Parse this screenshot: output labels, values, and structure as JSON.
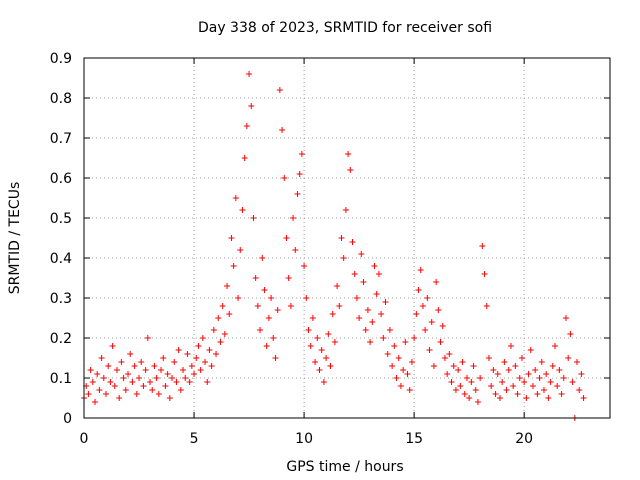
{
  "chart_data": {
    "type": "scatter",
    "title": "Day 338 of 2023, SRMTID for receiver sofi",
    "xlabel": "GPS time / hours",
    "ylabel": "SRMTID / TECUs",
    "xlim": [
      0,
      23.9
    ],
    "ylim": [
      0,
      0.9
    ],
    "xticks": [
      0,
      5,
      10,
      15,
      20
    ],
    "yticks": [
      0,
      0.1,
      0.2,
      0.3,
      0.4,
      0.5,
      0.6,
      0.7,
      0.8,
      0.9
    ],
    "xtick_labels": [
      "0",
      "5",
      "10",
      "15",
      "20"
    ],
    "ytick_labels": [
      "0",
      "0.1",
      "0.2",
      "0.3",
      "0.4",
      "0.5",
      "0.6",
      "0.7",
      "0.8",
      "0.9"
    ],
    "grid": true,
    "marker": "+",
    "color": "#ff0000",
    "series": [
      {
        "name": "SRMTID",
        "points": [
          [
            0.0,
            0.05
          ],
          [
            0.1,
            0.08
          ],
          [
            0.2,
            0.06
          ],
          [
            0.3,
            0.12
          ],
          [
            0.4,
            0.09
          ],
          [
            0.5,
            0.04
          ],
          [
            0.6,
            0.11
          ],
          [
            0.7,
            0.07
          ],
          [
            0.8,
            0.15
          ],
          [
            0.9,
            0.1
          ],
          [
            1.0,
            0.06
          ],
          [
            1.1,
            0.13
          ],
          [
            1.2,
            0.09
          ],
          [
            1.3,
            0.18
          ],
          [
            1.4,
            0.08
          ],
          [
            1.5,
            0.12
          ],
          [
            1.6,
            0.05
          ],
          [
            1.7,
            0.14
          ],
          [
            1.8,
            0.1
          ],
          [
            1.9,
            0.07
          ],
          [
            2.0,
            0.11
          ],
          [
            2.1,
            0.16
          ],
          [
            2.2,
            0.09
          ],
          [
            2.3,
            0.13
          ],
          [
            2.4,
            0.06
          ],
          [
            2.5,
            0.1
          ],
          [
            2.6,
            0.14
          ],
          [
            2.7,
            0.08
          ],
          [
            2.8,
            0.12
          ],
          [
            2.9,
            0.2
          ],
          [
            3.0,
            0.09
          ],
          [
            3.1,
            0.07
          ],
          [
            3.2,
            0.13
          ],
          [
            3.3,
            0.1
          ],
          [
            3.4,
            0.06
          ],
          [
            3.5,
            0.12
          ],
          [
            3.6,
            0.15
          ],
          [
            3.7,
            0.08
          ],
          [
            3.8,
            0.11
          ],
          [
            3.9,
            0.05
          ],
          [
            4.0,
            0.1
          ],
          [
            4.1,
            0.14
          ],
          [
            4.2,
            0.09
          ],
          [
            4.3,
            0.17
          ],
          [
            4.4,
            0.07
          ],
          [
            4.5,
            0.12
          ],
          [
            4.6,
            0.1
          ],
          [
            4.7,
            0.16
          ],
          [
            4.8,
            0.09
          ],
          [
            4.9,
            0.13
          ],
          [
            5.0,
            0.11
          ],
          [
            5.1,
            0.15
          ],
          [
            5.2,
            0.18
          ],
          [
            5.3,
            0.12
          ],
          [
            5.4,
            0.2
          ],
          [
            5.5,
            0.14
          ],
          [
            5.6,
            0.09
          ],
          [
            5.7,
            0.17
          ],
          [
            5.8,
            0.13
          ],
          [
            5.9,
            0.22
          ],
          [
            6.0,
            0.16
          ],
          [
            6.1,
            0.25
          ],
          [
            6.2,
            0.19
          ],
          [
            6.3,
            0.28
          ],
          [
            6.4,
            0.21
          ],
          [
            6.5,
            0.33
          ],
          [
            6.6,
            0.26
          ],
          [
            6.7,
            0.45
          ],
          [
            6.8,
            0.38
          ],
          [
            6.9,
            0.55
          ],
          [
            7.0,
            0.3
          ],
          [
            7.1,
            0.42
          ],
          [
            7.2,
            0.52
          ],
          [
            7.3,
            0.65
          ],
          [
            7.4,
            0.73
          ],
          [
            7.5,
            0.86
          ],
          [
            7.6,
            0.78
          ],
          [
            7.7,
            0.5
          ],
          [
            7.8,
            0.35
          ],
          [
            7.9,
            0.28
          ],
          [
            8.0,
            0.22
          ],
          [
            8.1,
            0.4
          ],
          [
            8.2,
            0.32
          ],
          [
            8.3,
            0.18
          ],
          [
            8.4,
            0.25
          ],
          [
            8.5,
            0.3
          ],
          [
            8.6,
            0.2
          ],
          [
            8.7,
            0.15
          ],
          [
            8.8,
            0.27
          ],
          [
            8.9,
            0.82
          ],
          [
            9.0,
            0.72
          ],
          [
            9.1,
            0.6
          ],
          [
            9.2,
            0.45
          ],
          [
            9.3,
            0.35
          ],
          [
            9.4,
            0.28
          ],
          [
            9.5,
            0.5
          ],
          [
            9.6,
            0.42
          ],
          [
            9.7,
            0.56
          ],
          [
            9.8,
            0.61
          ],
          [
            9.9,
            0.66
          ],
          [
            10.0,
            0.38
          ],
          [
            10.1,
            0.3
          ],
          [
            10.2,
            0.22
          ],
          [
            10.3,
            0.18
          ],
          [
            10.4,
            0.25
          ],
          [
            10.5,
            0.14
          ],
          [
            10.6,
            0.2
          ],
          [
            10.7,
            0.12
          ],
          [
            10.8,
            0.17
          ],
          [
            10.9,
            0.09
          ],
          [
            11.0,
            0.15
          ],
          [
            11.1,
            0.21
          ],
          [
            11.2,
            0.13
          ],
          [
            11.3,
            0.26
          ],
          [
            11.4,
            0.19
          ],
          [
            11.5,
            0.33
          ],
          [
            11.6,
            0.28
          ],
          [
            11.7,
            0.45
          ],
          [
            11.8,
            0.4
          ],
          [
            11.9,
            0.52
          ],
          [
            12.0,
            0.66
          ],
          [
            12.1,
            0.62
          ],
          [
            12.2,
            0.44
          ],
          [
            12.3,
            0.36
          ],
          [
            12.4,
            0.3
          ],
          [
            12.5,
            0.25
          ],
          [
            12.6,
            0.41
          ],
          [
            12.7,
            0.34
          ],
          [
            12.8,
            0.22
          ],
          [
            12.9,
            0.27
          ],
          [
            13.0,
            0.19
          ],
          [
            13.1,
            0.24
          ],
          [
            13.2,
            0.38
          ],
          [
            13.3,
            0.31
          ],
          [
            13.4,
            0.36
          ],
          [
            13.5,
            0.26
          ],
          [
            13.6,
            0.2
          ],
          [
            13.7,
            0.29
          ],
          [
            13.8,
            0.16
          ],
          [
            13.9,
            0.22
          ],
          [
            14.0,
            0.13
          ],
          [
            14.1,
            0.18
          ],
          [
            14.2,
            0.1
          ],
          [
            14.3,
            0.15
          ],
          [
            14.4,
            0.08
          ],
          [
            14.5,
            0.12
          ],
          [
            14.6,
            0.19
          ],
          [
            14.7,
            0.11
          ],
          [
            14.8,
            0.07
          ],
          [
            14.9,
            0.14
          ],
          [
            15.0,
            0.2
          ],
          [
            15.1,
            0.26
          ],
          [
            15.2,
            0.32
          ],
          [
            15.3,
            0.37
          ],
          [
            15.4,
            0.28
          ],
          [
            15.5,
            0.22
          ],
          [
            15.6,
            0.3
          ],
          [
            15.7,
            0.17
          ],
          [
            15.8,
            0.24
          ],
          [
            15.9,
            0.13
          ],
          [
            16.0,
            0.34
          ],
          [
            16.1,
            0.27
          ],
          [
            16.2,
            0.19
          ],
          [
            16.3,
            0.23
          ],
          [
            16.4,
            0.15
          ],
          [
            16.5,
            0.11
          ],
          [
            16.6,
            0.16
          ],
          [
            16.7,
            0.09
          ],
          [
            16.8,
            0.13
          ],
          [
            16.9,
            0.07
          ],
          [
            17.0,
            0.12
          ],
          [
            17.1,
            0.08
          ],
          [
            17.2,
            0.14
          ],
          [
            17.3,
            0.06
          ],
          [
            17.4,
            0.1
          ],
          [
            17.5,
            0.05
          ],
          [
            17.6,
            0.09
          ],
          [
            17.7,
            0.13
          ],
          [
            17.8,
            0.07
          ],
          [
            17.9,
            0.04
          ],
          [
            18.0,
            0.1
          ],
          [
            18.1,
            0.43
          ],
          [
            18.2,
            0.36
          ],
          [
            18.3,
            0.28
          ],
          [
            18.4,
            0.15
          ],
          [
            18.5,
            0.08
          ],
          [
            18.6,
            0.12
          ],
          [
            18.7,
            0.06
          ],
          [
            18.8,
            0.11
          ],
          [
            18.9,
            0.05
          ],
          [
            19.0,
            0.09
          ],
          [
            19.1,
            0.14
          ],
          [
            19.2,
            0.07
          ],
          [
            19.3,
            0.12
          ],
          [
            19.4,
            0.18
          ],
          [
            19.5,
            0.08
          ],
          [
            19.6,
            0.13
          ],
          [
            19.7,
            0.06
          ],
          [
            19.8,
            0.1
          ],
          [
            19.9,
            0.15
          ],
          [
            20.0,
            0.09
          ],
          [
            20.1,
            0.05
          ],
          [
            20.2,
            0.11
          ],
          [
            20.3,
            0.17
          ],
          [
            20.4,
            0.08
          ],
          [
            20.5,
            0.12
          ],
          [
            20.6,
            0.06
          ],
          [
            20.7,
            0.1
          ],
          [
            20.8,
            0.14
          ],
          [
            20.9,
            0.07
          ],
          [
            21.0,
            0.11
          ],
          [
            21.1,
            0.05
          ],
          [
            21.2,
            0.09
          ],
          [
            21.3,
            0.13
          ],
          [
            21.4,
            0.18
          ],
          [
            21.5,
            0.08
          ],
          [
            21.6,
            0.12
          ],
          [
            21.7,
            0.06
          ],
          [
            21.8,
            0.1
          ],
          [
            21.9,
            0.25
          ],
          [
            22.0,
            0.15
          ],
          [
            22.1,
            0.21
          ],
          [
            22.2,
            0.09
          ],
          [
            22.3,
            0.0
          ],
          [
            22.4,
            0.14
          ],
          [
            22.5,
            0.07
          ],
          [
            22.6,
            0.11
          ],
          [
            22.7,
            0.05
          ]
        ]
      }
    ]
  }
}
